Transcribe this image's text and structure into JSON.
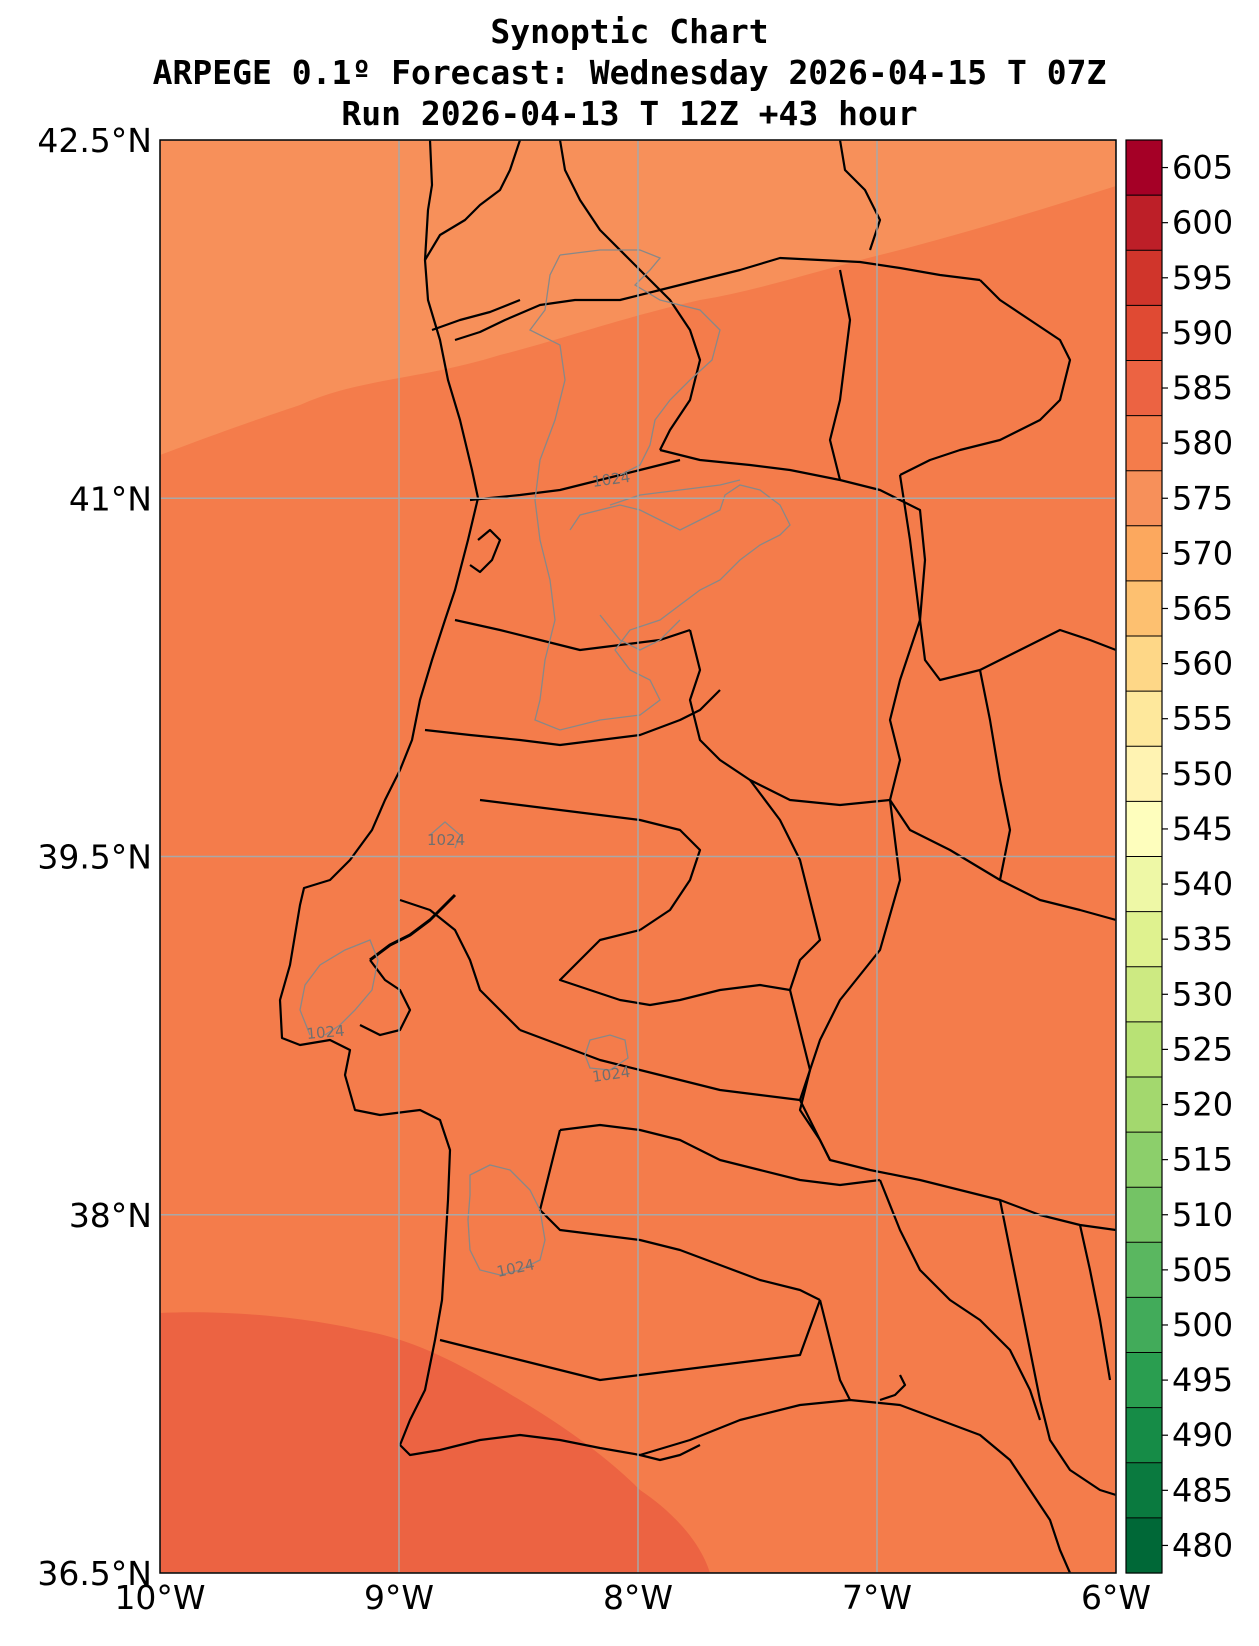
{
  "title": {
    "line1": "Synoptic Chart",
    "line2": "ARPEGE 0.1º Forecast: Wednesday 2026-04-15 T 07Z",
    "line3": "Run 2026-04-13 T 12Z +43 hour"
  },
  "map": {
    "lon_range": [
      -10,
      -6
    ],
    "lat_range": [
      36.5,
      42.5
    ],
    "gridlines": true,
    "lon_ticks": [
      {
        "value": -10,
        "label": "10°W"
      },
      {
        "value": -9,
        "label": "9°W"
      },
      {
        "value": -8,
        "label": "8°W"
      },
      {
        "value": -7,
        "label": "7°W"
      },
      {
        "value": -6,
        "label": "6°W"
      }
    ],
    "lat_ticks": [
      {
        "value": 42.5,
        "label": "42.5°N"
      },
      {
        "value": 41,
        "label": "41°N"
      },
      {
        "value": 39.5,
        "label": "39.5°N"
      },
      {
        "value": 38,
        "label": "38°N"
      },
      {
        "value": 36.5,
        "label": "36.5°N"
      }
    ],
    "fill_colors": {
      "band_570_575": "#f7905a",
      "band_575_580": "#f47c4b",
      "band_580_585": "#ec6342"
    },
    "isobar_label": "1024",
    "isobar_color": "#888888",
    "border_color": "#000000"
  },
  "colorbar": {
    "levels": [
      480,
      485,
      490,
      495,
      500,
      505,
      510,
      515,
      520,
      525,
      530,
      535,
      540,
      545,
      550,
      555,
      560,
      565,
      570,
      575,
      580,
      585,
      590,
      595,
      600,
      605
    ],
    "colors": [
      "#006837",
      "#0a7a3f",
      "#168c47",
      "#2a9e50",
      "#42ab5a",
      "#5ab760",
      "#74c365",
      "#8ccf6b",
      "#a3d86e",
      "#b8e275",
      "#cdea82",
      "#dff28f",
      "#eef8a6",
      "#fefebd",
      "#fff3b2",
      "#fee89c",
      "#fed787",
      "#fdc070",
      "#fca85e",
      "#f7905a",
      "#f47c4b",
      "#ec6342",
      "#e04a33",
      "#d0352b",
      "#bd1f28",
      "#a50026"
    ]
  }
}
